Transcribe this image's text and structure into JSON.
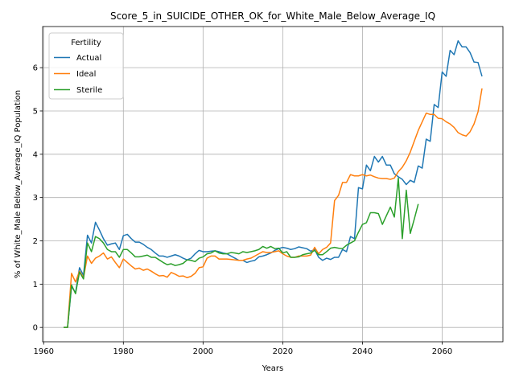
{
  "chart_data": {
    "type": "line",
    "title": "Score_5_in_SUICIDE_OTHER_OK_for_White_Male_Below_Average_IQ",
    "x_label": "Years",
    "y_label": "% of White_Male Below_Average_IQ Population",
    "legend_title": "Fertility",
    "legend_position": "upper left",
    "grid": true,
    "x": [
      1965,
      1966,
      1967,
      1968,
      1969,
      1970,
      1971,
      1972,
      1973,
      1974,
      1975,
      1976,
      1977,
      1978,
      1979,
      1980,
      1981,
      1982,
      1983,
      1984,
      1985,
      1986,
      1987,
      1988,
      1989,
      1990,
      1991,
      1992,
      1993,
      1994,
      1995,
      1996,
      1997,
      1998,
      1999,
      2000,
      2001,
      2002,
      2003,
      2004,
      2005,
      2006,
      2007,
      2008,
      2009,
      2010,
      2011,
      2012,
      2013,
      2014,
      2015,
      2016,
      2017,
      2018,
      2019,
      2020,
      2021,
      2022,
      2023,
      2024,
      2025,
      2026,
      2027,
      2028,
      2029,
      2030,
      2031,
      2032,
      2033,
      2034,
      2035,
      2036,
      2037,
      2038,
      2039,
      2040,
      2041,
      2042,
      2043,
      2044,
      2045,
      2046,
      2047,
      2048,
      2049,
      2050,
      2051,
      2052,
      2053,
      2054,
      2055,
      2056,
      2057,
      2058,
      2059,
      2060,
      2061,
      2062,
      2063,
      2064,
      2065,
      2066,
      2067,
      2068,
      2069,
      2070
    ],
    "series": [
      {
        "name": "Actual",
        "color": "#1f77b4",
        "values": [
          0,
          0,
          0.95,
          0.8,
          1.38,
          1.2,
          2.13,
          1.95,
          2.43,
          2.25,
          2.05,
          1.9,
          1.93,
          1.95,
          1.8,
          2.12,
          2.15,
          2.05,
          1.97,
          1.97,
          1.92,
          1.85,
          1.8,
          1.72,
          1.65,
          1.65,
          1.62,
          1.65,
          1.68,
          1.65,
          1.6,
          1.56,
          1.6,
          1.7,
          1.78,
          1.75,
          1.75,
          1.76,
          1.77,
          1.75,
          1.72,
          1.7,
          1.65,
          1.6,
          1.55,
          1.55,
          1.5,
          1.53,
          1.55,
          1.63,
          1.65,
          1.68,
          1.72,
          1.78,
          1.82,
          1.85,
          1.83,
          1.8,
          1.82,
          1.86,
          1.84,
          1.82,
          1.76,
          1.8,
          1.62,
          1.55,
          1.6,
          1.57,
          1.62,
          1.62,
          1.8,
          1.75,
          2.1,
          2.05,
          3.23,
          3.2,
          3.75,
          3.62,
          3.95,
          3.82,
          3.95,
          3.75,
          3.75,
          3.55,
          3.48,
          3.42,
          3.3,
          3.4,
          3.35,
          3.73,
          3.68,
          4.35,
          4.3,
          5.15,
          5.08,
          5.9,
          5.8,
          6.4,
          6.3,
          6.62,
          6.48,
          6.48,
          6.35,
          6.13,
          6.12,
          5.8
        ]
      },
      {
        "name": "Ideal",
        "color": "#ff7f0e",
        "values": [
          0,
          0,
          1.25,
          1.05,
          1.3,
          1.15,
          1.65,
          1.48,
          1.6,
          1.65,
          1.72,
          1.58,
          1.63,
          1.5,
          1.38,
          1.58,
          1.5,
          1.42,
          1.35,
          1.37,
          1.32,
          1.35,
          1.3,
          1.24,
          1.19,
          1.2,
          1.16,
          1.27,
          1.23,
          1.18,
          1.19,
          1.15,
          1.18,
          1.25,
          1.38,
          1.4,
          1.6,
          1.65,
          1.65,
          1.58,
          1.58,
          1.58,
          1.57,
          1.56,
          1.55,
          1.55,
          1.58,
          1.6,
          1.65,
          1.7,
          1.75,
          1.73,
          1.73,
          1.75,
          1.77,
          1.7,
          1.65,
          1.62,
          1.62,
          1.65,
          1.65,
          1.65,
          1.67,
          1.85,
          1.7,
          1.8,
          1.85,
          1.95,
          2.93,
          3.05,
          3.35,
          3.35,
          3.53,
          3.5,
          3.5,
          3.53,
          3.5,
          3.52,
          3.48,
          3.45,
          3.44,
          3.44,
          3.42,
          3.45,
          3.6,
          3.7,
          3.85,
          4.05,
          4.3,
          4.55,
          4.75,
          4.95,
          4.92,
          4.92,
          4.83,
          4.82,
          4.75,
          4.7,
          4.62,
          4.5,
          4.45,
          4.42,
          4.52,
          4.7,
          4.98,
          5.52
        ]
      },
      {
        "name": "Sterile",
        "color": "#2ca02c",
        "values": [
          0,
          0,
          0.98,
          0.78,
          1.28,
          1.12,
          1.95,
          1.75,
          2.1,
          2.05,
          1.95,
          1.8,
          1.75,
          1.75,
          1.62,
          1.8,
          1.8,
          1.72,
          1.63,
          1.63,
          1.65,
          1.67,
          1.62,
          1.62,
          1.56,
          1.5,
          1.45,
          1.47,
          1.43,
          1.45,
          1.48,
          1.56,
          1.55,
          1.52,
          1.6,
          1.63,
          1.7,
          1.72,
          1.77,
          1.72,
          1.7,
          1.7,
          1.73,
          1.72,
          1.7,
          1.75,
          1.73,
          1.75,
          1.77,
          1.8,
          1.87,
          1.83,
          1.87,
          1.82,
          1.83,
          1.72,
          1.75,
          1.62,
          1.62,
          1.63,
          1.68,
          1.7,
          1.72,
          1.78,
          1.68,
          1.68,
          1.75,
          1.83,
          1.85,
          1.83,
          1.82,
          1.9,
          1.95,
          2.0,
          2.2,
          2.38,
          2.42,
          2.65,
          2.65,
          2.63,
          2.38,
          2.58,
          2.78,
          2.55,
          3.45,
          2.05,
          3.17,
          2.17,
          2.5,
          2.85,
          null,
          null,
          null,
          null,
          null,
          null,
          null,
          null,
          null,
          null,
          null,
          null,
          null,
          null,
          null,
          null
        ]
      }
    ],
    "xlim": [
      1959.75,
      2075.25
    ],
    "ylim": [
      -0.331,
      6.95
    ],
    "xticks": [
      1960,
      1980,
      2000,
      2020,
      2040,
      2060
    ],
    "yticks": [
      0,
      1,
      2,
      3,
      4,
      5,
      6
    ]
  }
}
